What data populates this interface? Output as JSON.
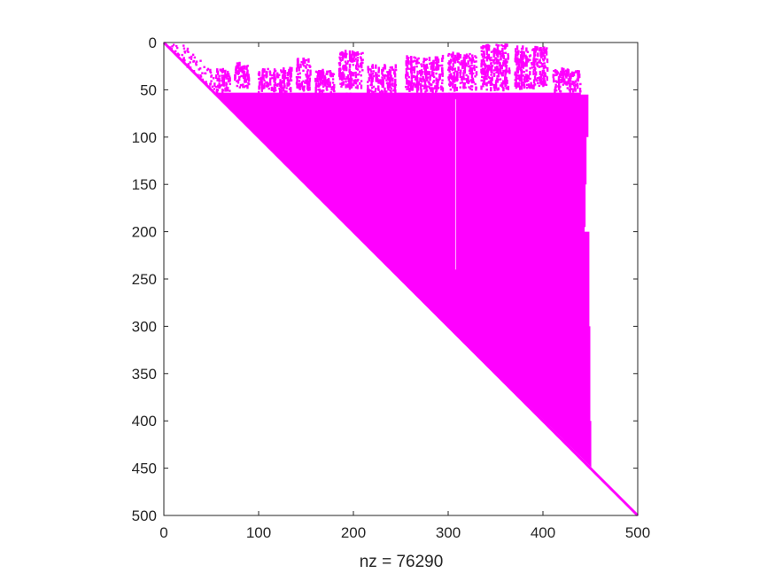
{
  "chart_data": {
    "type": "scatter",
    "subtype": "sparsity-pattern",
    "xlabel": "nz = 76290",
    "ylabel": "",
    "title": "",
    "xlim": [
      0,
      500
    ],
    "ylim": [
      500,
      0
    ],
    "y_axis_reversed": true,
    "xticks": [
      0,
      100,
      200,
      300,
      400,
      500
    ],
    "yticks": [
      0,
      50,
      100,
      150,
      200,
      250,
      300,
      350,
      400,
      450,
      500
    ],
    "grid": false,
    "color": "#ff00ff",
    "matrix_size": 500,
    "nnz": 76290,
    "dense_block": {
      "row_start": 53,
      "col_start": 53,
      "right_edge": [
        {
          "row": 53,
          "col": 440
        },
        {
          "row": 55,
          "col": 448
        },
        {
          "row": 100,
          "col": 446
        },
        {
          "row": 150,
          "col": 445
        },
        {
          "row": 195,
          "col": 444
        },
        {
          "row": 200,
          "col": 449
        },
        {
          "row": 300,
          "col": 450
        },
        {
          "row": 400,
          "col": 451
        },
        {
          "row": 450,
          "col": 452
        }
      ]
    },
    "notches": [
      {
        "col": 193,
        "row_to": 105
      },
      {
        "col": 197,
        "row_to": 100
      },
      {
        "col": 237,
        "row_to": 100
      },
      {
        "col": 295,
        "row_to": 95
      },
      {
        "col": 301,
        "row_to": 105
      },
      {
        "col": 305,
        "row_to": 90
      },
      {
        "col": 351,
        "row_to": 75
      }
    ],
    "top_clusters": [
      {
        "col": [
          55,
          70
        ],
        "row": [
          28,
          53
        ]
      },
      {
        "col": [
          75,
          90
        ],
        "row": [
          22,
          48
        ]
      },
      {
        "col": [
          100,
          135
        ],
        "row": [
          28,
          53
        ]
      },
      {
        "col": [
          140,
          155
        ],
        "row": [
          18,
          50
        ]
      },
      {
        "col": [
          160,
          180
        ],
        "row": [
          30,
          53
        ]
      },
      {
        "col": [
          185,
          210
        ],
        "row": [
          10,
          48
        ]
      },
      {
        "col": [
          215,
          245
        ],
        "row": [
          25,
          53
        ]
      },
      {
        "col": [
          255,
          295
        ],
        "row": [
          15,
          52
        ]
      },
      {
        "col": [
          300,
          330
        ],
        "row": [
          12,
          50
        ]
      },
      {
        "col": [
          335,
          365
        ],
        "row": [
          2,
          50
        ]
      },
      {
        "col": [
          370,
          405
        ],
        "row": [
          5,
          48
        ]
      },
      {
        "col": [
          410,
          440
        ],
        "row": [
          28,
          52
        ]
      }
    ]
  }
}
